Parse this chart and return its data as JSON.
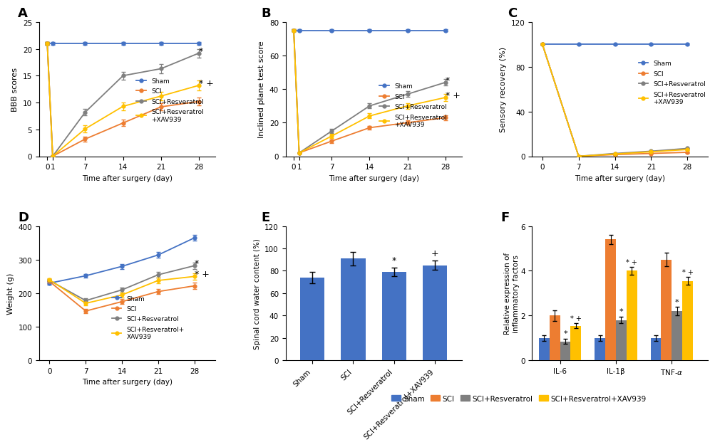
{
  "colors": {
    "sham": "#4472C4",
    "sci": "#ED7D31",
    "sci_resv": "#7F7F7F",
    "sci_resv_xav": "#FFC000"
  },
  "panel_A": {
    "title": "A",
    "xlabel": "Time after surgery (day)",
    "ylabel": "BBB scores",
    "xticklabels": [
      "0",
      "1",
      "7",
      "14",
      "21",
      "28"
    ],
    "x": [
      0,
      1,
      7,
      14,
      21,
      28
    ],
    "sham": [
      21,
      21,
      21,
      21,
      21,
      21
    ],
    "sham_err": [
      0.3,
      0.3,
      0.3,
      0.3,
      0.3,
      0.3
    ],
    "sci": [
      21,
      0,
      3.2,
      6.2,
      9.2,
      10.2
    ],
    "sci_err": [
      0.3,
      0.2,
      0.5,
      0.6,
      0.7,
      0.7
    ],
    "sci_resv": [
      21,
      0,
      8.2,
      15.0,
      16.3,
      19.2
    ],
    "sci_resv_err": [
      0.3,
      0.2,
      0.6,
      0.7,
      0.8,
      0.8
    ],
    "sci_resv_xav": [
      21,
      0,
      5.1,
      9.3,
      11.2,
      13.2
    ],
    "sci_resv_xav_err": [
      0.3,
      0.2,
      0.6,
      0.7,
      0.8,
      0.9
    ],
    "ylim": [
      0,
      25
    ],
    "yticks": [
      0,
      5,
      10,
      15,
      20,
      25
    ]
  },
  "panel_B": {
    "title": "B",
    "xlabel": "Time after surgery (day)",
    "ylabel": "Inclined plane test score",
    "xticklabels": [
      "0",
      "1",
      "7",
      "14",
      "21",
      "28"
    ],
    "x": [
      0,
      1,
      7,
      14,
      21,
      28
    ],
    "sham": [
      75,
      75,
      75,
      75,
      75,
      75
    ],
    "sham_err": [
      0.5,
      0.5,
      0.5,
      0.5,
      0.5,
      0.5
    ],
    "sci": [
      75,
      2,
      9,
      17,
      20,
      23
    ],
    "sci_err": [
      0.5,
      0.3,
      1.0,
      1.2,
      1.3,
      1.4
    ],
    "sci_resv": [
      75,
      2,
      15,
      30,
      37,
      44
    ],
    "sci_resv_err": [
      0.5,
      0.3,
      1.2,
      1.5,
      1.8,
      2.0
    ],
    "sci_resv_xav": [
      75,
      2,
      12,
      24,
      30,
      35
    ],
    "sci_resv_xav_err": [
      0.5,
      0.3,
      1.2,
      1.5,
      1.8,
      2.0
    ],
    "ylim": [
      0,
      80
    ],
    "yticks": [
      0,
      20,
      40,
      60,
      80
    ]
  },
  "panel_C": {
    "title": "C",
    "xlabel": "Time after surgery (day)",
    "ylabel": "Sensory recovery (%)",
    "xticklabels": [
      "0",
      "7",
      "14",
      "21",
      "28"
    ],
    "x": [
      0,
      7,
      14,
      21,
      28
    ],
    "sham": [
      100,
      100,
      100,
      100,
      100
    ],
    "sham_err": [
      0.5,
      0.5,
      0.5,
      0.5,
      0.5
    ],
    "sci": [
      100,
      0,
      1.5,
      2.5,
      3.5
    ],
    "sci_err": [
      0.5,
      0.2,
      0.3,
      0.4,
      0.5
    ],
    "sci_resv": [
      100,
      0,
      2.5,
      4.5,
      7.0
    ],
    "sci_resv_err": [
      0.5,
      0.2,
      0.4,
      0.5,
      0.6
    ],
    "sci_resv_xav": [
      100,
      0,
      2.0,
      4.0,
      6.0
    ],
    "sci_resv_xav_err": [
      0.5,
      0.2,
      0.4,
      0.5,
      0.6
    ],
    "ylim": [
      0,
      120
    ],
    "yticks": [
      0,
      40,
      80,
      120
    ]
  },
  "panel_D": {
    "title": "D",
    "xlabel": "Time after surgery (day)",
    "ylabel": "Weight (g)",
    "xticklabels": [
      "0",
      "7",
      "14",
      "21",
      "28"
    ],
    "x": [
      0,
      7,
      14,
      21,
      28
    ],
    "sham": [
      230,
      252,
      280,
      314,
      365
    ],
    "sham_err": [
      5,
      6,
      7,
      8,
      9
    ],
    "sci": [
      235,
      147,
      175,
      205,
      222
    ],
    "sci_err": [
      5,
      6,
      7,
      8,
      9
    ],
    "sci_resv": [
      238,
      178,
      210,
      255,
      282
    ],
    "sci_resv_err": [
      5,
      6,
      7,
      8,
      9
    ],
    "sci_resv_xav": [
      240,
      170,
      195,
      238,
      250
    ],
    "sci_resv_xav_err": [
      5,
      6,
      7,
      8,
      9
    ],
    "ylim": [
      0,
      400
    ],
    "yticks": [
      0,
      100,
      200,
      300,
      400
    ]
  },
  "panel_E": {
    "title": "E",
    "ylabel": "Spinal cord water content (%)",
    "categories": [
      "Sham",
      "SCI",
      "SCI+Resveratrol",
      "SCI+Resveratrol+XAV939"
    ],
    "values": [
      74,
      91,
      79,
      85
    ],
    "errors": [
      5,
      6,
      4,
      4
    ],
    "ylim": [
      0,
      120
    ],
    "yticks": [
      0,
      20,
      40,
      60,
      80,
      100,
      120
    ],
    "bar_color": "#4472C4",
    "annot": [
      "",
      "",
      "*",
      "+"
    ]
  },
  "panel_F": {
    "title": "F",
    "ylabel": "Relative expression of\ninflammatory factors",
    "groups": [
      "IL-6",
      "IL-1β",
      "TNF-α"
    ],
    "sham": [
      1.0,
      1.0,
      1.0
    ],
    "sci": [
      2.0,
      5.4,
      4.5
    ],
    "sci_resv": [
      0.85,
      1.8,
      2.2
    ],
    "sci_resv_xav": [
      1.55,
      4.0,
      3.55
    ],
    "errors_sham": [
      0.12,
      0.12,
      0.12
    ],
    "errors_sci": [
      0.25,
      0.2,
      0.3
    ],
    "errors_sci_resv": [
      0.12,
      0.15,
      0.18
    ],
    "errors_sci_resv_xav": [
      0.12,
      0.18,
      0.18
    ],
    "ylim": [
      0,
      6
    ],
    "yticks": [
      0,
      2,
      4,
      6
    ]
  },
  "legend_labels_line": [
    "Sham",
    "SCI",
    "SCI+Resveratrol",
    "SCI+Resveratrol\n+XAV939"
  ],
  "legend_labels_line_D": [
    "Sham",
    "SCI",
    "SCI+Resveratrol",
    "SCI+Resveratrol+\nXAV939"
  ],
  "legend_labels_F": [
    "Sham",
    "SCI",
    "SCI+Resveratrol",
    "SCI+Resveratrol+XAV939"
  ]
}
